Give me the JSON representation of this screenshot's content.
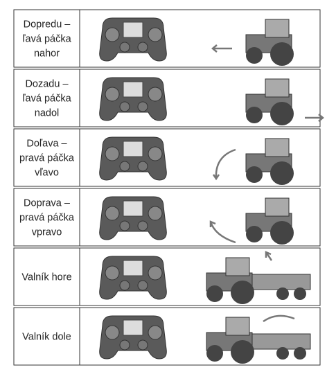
{
  "rows": [
    {
      "label": [
        "Dopredu –",
        "ľavá páčka",
        "nahor"
      ]
    },
    {
      "label": [
        "Dozadu –",
        "ľavá páčka",
        "nadol"
      ]
    },
    {
      "label": [
        "Doľava –",
        "pravá páčka",
        "vľavo"
      ]
    },
    {
      "label": [
        "Doprava –",
        "pravá páčka",
        "vpravo"
      ]
    },
    {
      "label": [
        "Valník hore"
      ]
    },
    {
      "label": [
        "Valník dole"
      ]
    }
  ]
}
